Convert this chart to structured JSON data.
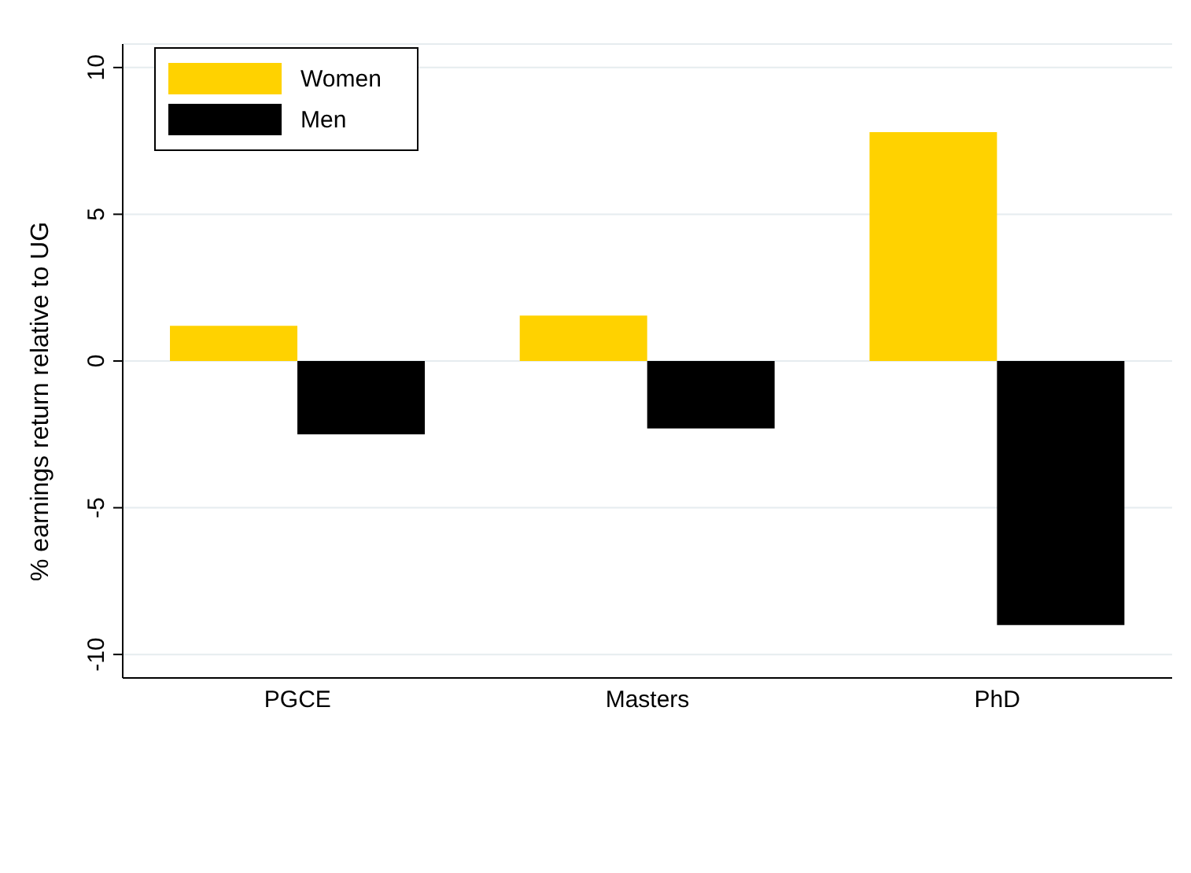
{
  "chart_data": {
    "type": "bar",
    "ylabel": "% earnings return relative to UG",
    "categories": [
      "PGCE",
      "Masters",
      "PhD"
    ],
    "series": [
      {
        "name": "Women",
        "color": "#ffd200",
        "values": [
          1.2,
          1.55,
          7.8
        ]
      },
      {
        "name": "Men",
        "color": "#000000",
        "values": [
          -2.5,
          -2.3,
          -9.0
        ]
      }
    ],
    "ylim": [
      -10.8,
      10.8
    ],
    "yticks": [
      -10,
      -5,
      0,
      5,
      10
    ],
    "grid": "y",
    "legend": "top left"
  }
}
